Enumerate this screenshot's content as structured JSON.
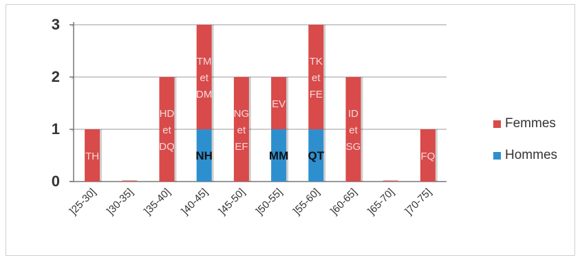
{
  "chart_data": {
    "type": "bar",
    "stacked": true,
    "categories": [
      "]25-30]",
      "]30-35]",
      "]35-40]",
      "]40-45]",
      "]45-50]",
      "]50-55]",
      "]55-60]",
      "]60-65]",
      "]65-70]",
      "]70-75]"
    ],
    "series": [
      {
        "name": "Hommes",
        "color": "#2e8fcf",
        "values": [
          0,
          0,
          0,
          1,
          0,
          1,
          1,
          0,
          0,
          0
        ],
        "labels": [
          "",
          "",
          "",
          "NH",
          "",
          "MM",
          "QT",
          "",
          "",
          ""
        ]
      },
      {
        "name": "Femmes",
        "color": "#d94a4a",
        "values": [
          1,
          0,
          2,
          2,
          2,
          1,
          2,
          2,
          0,
          1
        ],
        "labels": [
          "TH",
          "",
          "HD\net\nDQ",
          "TM\net\nDM",
          "NG\net\nEF",
          "EV",
          "TK\net\nFE",
          "ID\net\nSG",
          "",
          "FQ"
        ]
      }
    ],
    "yticks": [
      "0",
      "1",
      "2",
      "3"
    ],
    "ylim": [
      0,
      3
    ],
    "grid": true,
    "legend": "right"
  }
}
